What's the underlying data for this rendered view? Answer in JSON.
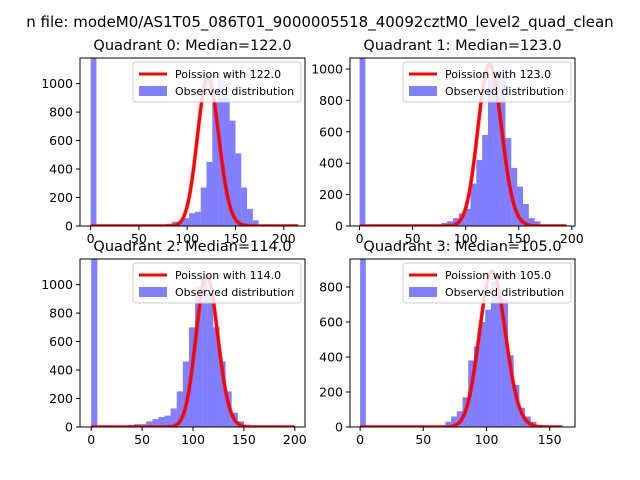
{
  "suptitle": "n file: modeM0/AS1T05_086T01_9000005518_40092cztM0_level2_quad_clean",
  "colors": {
    "poisson": "#ff0000",
    "observed": "#0000ff",
    "axis": "#000000"
  },
  "chart_data": [
    {
      "type": "bar",
      "title": "Quadrant 0: Median=122.0",
      "median": 122.0,
      "xlim": [
        -11,
        222
      ],
      "ylim": [
        0,
        1180
      ],
      "xticks": [
        0,
        50,
        100,
        150,
        200
      ],
      "yticks": [
        0,
        200,
        400,
        600,
        800,
        1000
      ],
      "legend": [
        "Poission with 122.0",
        "Observed distribution"
      ],
      "legend_position": "top-right",
      "observed": {
        "name": "Observed distribution",
        "bins": [
          0,
          6,
          12,
          18,
          24,
          30,
          36,
          42,
          48,
          54,
          60,
          66,
          72,
          78,
          84,
          90,
          96,
          102,
          108,
          114,
          120,
          126,
          132,
          138,
          144,
          150,
          156,
          162,
          168,
          174,
          180,
          186,
          192,
          198,
          204,
          210
        ],
        "width": 6,
        "values": [
          1180,
          0,
          0,
          0,
          0,
          0,
          0,
          0,
          0,
          0,
          0,
          0,
          5,
          15,
          30,
          30,
          55,
          90,
          100,
          270,
          450,
          870,
          1030,
          950,
          740,
          510,
          270,
          120,
          40,
          10,
          5,
          0,
          0,
          0,
          0,
          0
        ]
      },
      "poisson": {
        "name": "Poission with 122.0",
        "lambda": 122.0,
        "peak": 1040,
        "x_range": [
          0,
          215
        ]
      }
    },
    {
      "type": "bar",
      "title": "Quadrant 1: Median=123.0",
      "median": 123.0,
      "xlim": [
        -9,
        203
      ],
      "ylim": [
        0,
        1070
      ],
      "xticks": [
        0,
        50,
        100,
        150,
        200
      ],
      "yticks": [
        0,
        200,
        400,
        600,
        800,
        1000
      ],
      "legend": [
        "Poission with 123.0",
        "Observed distribution"
      ],
      "legend_position": "top-right",
      "observed": {
        "name": "Observed distribution",
        "bins": [
          0,
          5.5,
          11,
          16.5,
          22,
          27.5,
          33,
          38.5,
          44,
          49.5,
          55,
          60.5,
          66,
          71.5,
          77,
          82.5,
          88,
          93.5,
          99,
          104.5,
          110,
          115.5,
          121,
          126.5,
          132,
          137.5,
          143,
          148.5,
          154,
          159.5,
          165,
          170.5,
          176,
          181.5,
          187
        ],
        "width": 5.5,
        "values": [
          1070,
          0,
          0,
          0,
          0,
          0,
          0,
          0,
          0,
          0,
          0,
          0,
          5,
          10,
          20,
          30,
          50,
          80,
          110,
          270,
          420,
          580,
          930,
          990,
          960,
          560,
          370,
          250,
          140,
          50,
          30,
          10,
          0,
          0,
          0
        ]
      },
      "poisson": {
        "name": "Poission with 123.0",
        "lambda": 123.0,
        "peak": 1030,
        "x_range": [
          0,
          195
        ]
      }
    },
    {
      "type": "bar",
      "title": "Quadrant 2: Median=114.0",
      "median": 114.0,
      "xlim": [
        -11,
        210
      ],
      "ylim": [
        0,
        1180
      ],
      "xticks": [
        0,
        50,
        100,
        150,
        200
      ],
      "yticks": [
        0,
        200,
        400,
        600,
        800,
        1000
      ],
      "legend": [
        "Poission with 114.0",
        "Observed distribution"
      ],
      "legend_position": "top-right",
      "observed": {
        "name": "Observed distribution",
        "bins": [
          0,
          6,
          12,
          18,
          24,
          30,
          36,
          42,
          48,
          54,
          60,
          66,
          72,
          78,
          84,
          90,
          96,
          102,
          108,
          114,
          120,
          126,
          132,
          138,
          144,
          150,
          156,
          162,
          168,
          174,
          180,
          186,
          192
        ],
        "width": 6,
        "values": [
          1180,
          0,
          0,
          0,
          0,
          10,
          15,
          20,
          20,
          40,
          55,
          70,
          80,
          130,
          250,
          460,
          700,
          990,
          1040,
          920,
          700,
          460,
          250,
          100,
          40,
          15,
          5,
          0,
          0,
          0,
          0,
          0,
          0
        ]
      },
      "poisson": {
        "name": "Poission with 114.0",
        "lambda": 114.0,
        "peak": 1060,
        "x_range": [
          0,
          200
        ]
      }
    },
    {
      "type": "bar",
      "title": "Quadrant 3: Median=105.0",
      "median": 105.0,
      "xlim": [
        -8,
        170
      ],
      "ylim": [
        0,
        960
      ],
      "xticks": [
        0,
        50,
        100,
        150
      ],
      "yticks": [
        0,
        200,
        400,
        600,
        800
      ],
      "legend": [
        "Poission with 105.0",
        "Observed distribution"
      ],
      "legend_position": "top-right",
      "observed": {
        "name": "Observed distribution",
        "bins": [
          0,
          4.5,
          9,
          13.5,
          18,
          22.5,
          27,
          31.5,
          36,
          40.5,
          45,
          49.5,
          54,
          58.5,
          63,
          67.5,
          72,
          76.5,
          81,
          85.5,
          90,
          94.5,
          99,
          103.5,
          108,
          112.5,
          117,
          121.5,
          126,
          130.5,
          135,
          139.5,
          144,
          148.5,
          153,
          157.5
        ],
        "width": 4.5,
        "values": [
          960,
          0,
          0,
          0,
          0,
          0,
          0,
          0,
          0,
          0,
          0,
          0,
          0,
          0,
          0,
          30,
          60,
          90,
          170,
          380,
          460,
          600,
          670,
          830,
          770,
          730,
          410,
          240,
          110,
          60,
          30,
          10,
          0,
          0,
          0,
          0
        ]
      },
      "poisson": {
        "name": "Poission with 105.0",
        "lambda": 105.0,
        "peak": 890,
        "x_range": [
          0,
          160
        ]
      }
    }
  ]
}
